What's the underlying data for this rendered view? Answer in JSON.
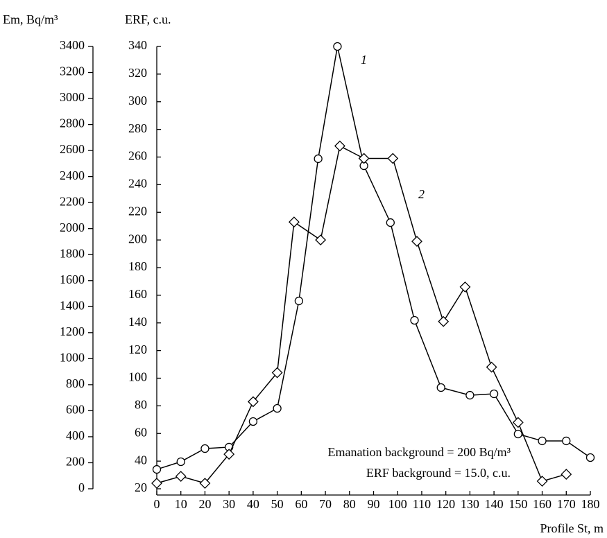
{
  "chart_data": {
    "type": "line",
    "y_label": "Em, Bq/m³",
    "y2_label": "ERF, c.u.",
    "x_label": "Profile St, m",
    "annotations": [
      "Emanation background = 200 Bq/m³",
      "ERF background = 15.0, c.u."
    ],
    "xlim": [
      0,
      180
    ],
    "xticks": [
      0,
      10,
      20,
      30,
      40,
      50,
      60,
      70,
      80,
      90,
      100,
      110,
      120,
      130,
      140,
      150,
      160,
      170,
      180
    ],
    "ylim": [
      0,
      3400
    ],
    "yticks": [
      0,
      200,
      400,
      600,
      800,
      1000,
      1200,
      1400,
      1600,
      1800,
      2000,
      2200,
      2400,
      2600,
      2800,
      3000,
      3200,
      3400
    ],
    "y2lim": [
      20,
      340
    ],
    "y2ticks": [
      20,
      40,
      60,
      80,
      100,
      120,
      140,
      160,
      180,
      200,
      220,
      240,
      260,
      280,
      300,
      320,
      340
    ],
    "grid": false,
    "series": [
      {
        "name": "1",
        "color": "#000000",
        "marker": "circle",
        "axis": "y",
        "x": [
          0,
          10,
          20,
          30,
          40,
          50,
          59,
          67,
          75,
          86,
          97,
          107,
          118,
          130,
          140,
          150,
          160,
          170,
          180
        ],
        "values": [
          149,
          208,
          309,
          320,
          517,
          618,
          1444,
          2537,
          3400,
          2483,
          2046,
          1295,
          778,
          719,
          730,
          421,
          368,
          368,
          240
        ]
      },
      {
        "name": "2",
        "color": "#000000",
        "marker": "diamond",
        "axis": "y2",
        "x": [
          0,
          10,
          20,
          30,
          40,
          50,
          57,
          68,
          76,
          86,
          98,
          108,
          119,
          128,
          139,
          150,
          160,
          170
        ],
        "values": [
          24,
          29,
          24,
          45,
          83,
          104,
          213,
          200,
          268,
          259,
          259,
          199,
          141,
          166,
          108,
          68,
          25.5,
          30.5
        ]
      }
    ]
  }
}
